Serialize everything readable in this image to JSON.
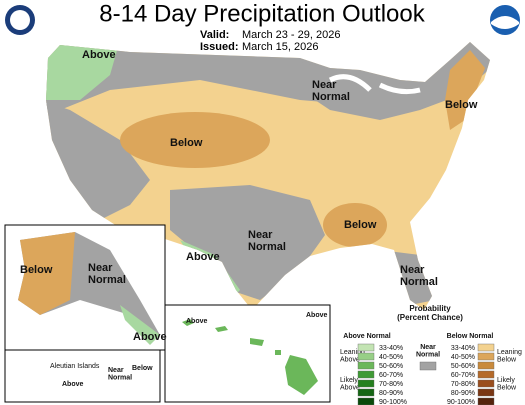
{
  "header": {
    "title": "8-14 Day Precipitation Outlook",
    "valid_label": "Valid:",
    "valid_dates": "March 23 - 29, 2026",
    "issued_label": "Issued:",
    "issued_dates": "March 15, 2026"
  },
  "map_labels": [
    "Above",
    "Near Normal",
    "Below",
    "Below",
    "Below",
    "Near Normal",
    "Above",
    "Near Normal"
  ],
  "alaska_labels": [
    "Below",
    "Near Normal",
    "Above"
  ],
  "aleutian_labels": [
    "Aleutian Islands",
    "Near Normal",
    "Below",
    "Above"
  ],
  "hawaii_labels": [
    "Above",
    "Above"
  ],
  "legend": {
    "title": "Probability (Percent Chance)",
    "above": {
      "heading": "Above Normal",
      "leaning": "Leaning Above",
      "likely": "Likely Above",
      "ranges": [
        {
          "label": "33-40%",
          "color": "#c3e4b3"
        },
        {
          "label": "40-50%",
          "color": "#97cf86"
        },
        {
          "label": "50-60%",
          "color": "#6bb75a"
        },
        {
          "label": "60-70%",
          "color": "#3f9a35"
        },
        {
          "label": "70-80%",
          "color": "#25801f"
        },
        {
          "label": "80-90%",
          "color": "#156614"
        },
        {
          "label": "90-100%",
          "color": "#0a4a0a"
        }
      ]
    },
    "near": {
      "heading": "Near Normal",
      "color": "#a3a3a3"
    },
    "below": {
      "heading": "Below Normal",
      "leaning": "Leaning Below",
      "likely": "Likely Below",
      "ranges": [
        {
          "label": "33-40%",
          "color": "#f3d28f"
        },
        {
          "label": "40-50%",
          "color": "#dca65b"
        },
        {
          "label": "50-60%",
          "color": "#c98a3c"
        },
        {
          "label": "60-70%",
          "color": "#b56a2a"
        },
        {
          "label": "70-80%",
          "color": "#9a4e1e"
        },
        {
          "label": "80-90%",
          "color": "#7a3714"
        },
        {
          "label": "90-100%",
          "color": "#55230c"
        }
      ]
    }
  }
}
